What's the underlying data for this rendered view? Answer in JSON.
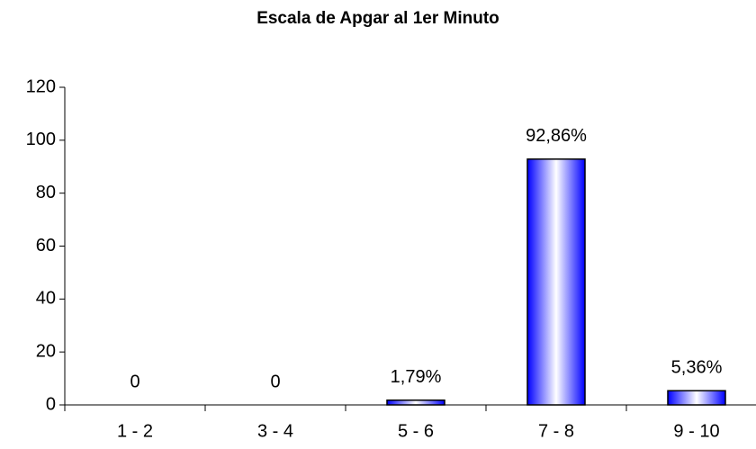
{
  "chart_data": {
    "type": "bar",
    "title": "Escala de Apgar al 1er Minuto",
    "categories": [
      "1 - 2",
      "3 - 4",
      "5 - 6",
      "7 - 8",
      "9 - 10"
    ],
    "values": [
      0,
      0,
      1.79,
      92.86,
      5.36
    ],
    "value_labels": [
      "0",
      "0",
      "1,79%",
      "92,86%",
      "5,36%"
    ],
    "color": "#0000ff",
    "ylim": [
      0,
      120
    ],
    "yticks": [
      0,
      20,
      40,
      60,
      80,
      100,
      120
    ],
    "grid": false
  }
}
